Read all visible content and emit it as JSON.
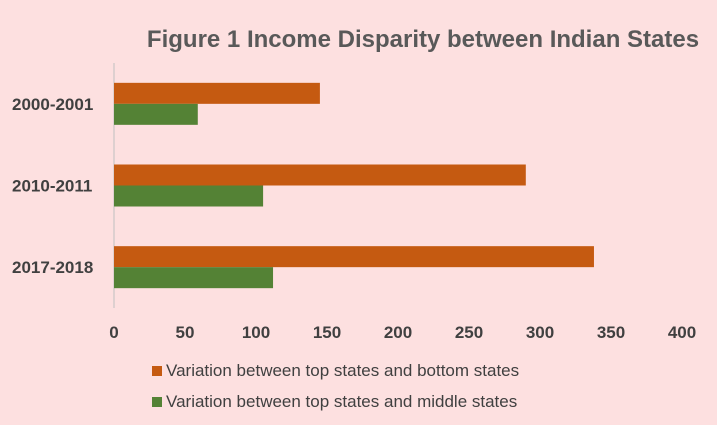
{
  "chart_data": {
    "type": "bar",
    "orientation": "horizontal",
    "title": "Figure 1 Income Disparity between Indian States",
    "categories": [
      "2000-2001",
      "2010-2011",
      "2017-2018"
    ],
    "series": [
      {
        "name": "Variation between top states and bottom states",
        "color": "#c55a11",
        "values": [
          145,
          290,
          338
        ]
      },
      {
        "name": "Variation between top states and middle states",
        "color": "#548235",
        "values": [
          59,
          105,
          112
        ]
      }
    ],
    "xlim": [
      0,
      400
    ],
    "ticks": [
      "0",
      "50",
      "100",
      "150",
      "200",
      "250",
      "300",
      "350",
      "400"
    ],
    "grid": false,
    "legend_position": "bottom"
  }
}
